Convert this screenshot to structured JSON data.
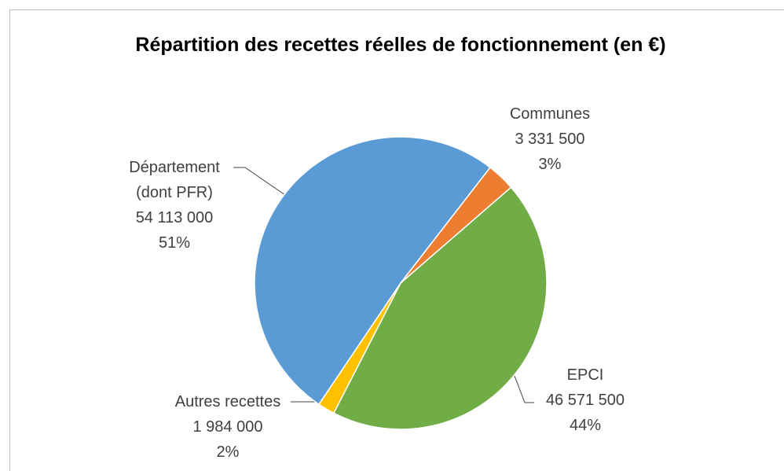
{
  "chart_data": {
    "type": "pie",
    "title": "Répartition des recettes réelles de fonctionnement (en €)",
    "categories": [
      "Département (dont PFR)",
      "Communes",
      "EPCI",
      "Autres recettes"
    ],
    "values": [
      54113000,
      3331500,
      46571500,
      1984000
    ],
    "value_labels": [
      "54 113 000",
      "3 331 500",
      "46 571 500",
      "1 984 000"
    ],
    "percentages": [
      {
        "value": 51,
        "label": "51%"
      },
      {
        "value": 3,
        "label": "3%"
      },
      {
        "value": 44,
        "label": "44%"
      },
      {
        "value": 2,
        "label": "2%"
      }
    ],
    "colors": [
      "#5b9bd5",
      "#ed7d31",
      "#70ad47",
      "#ffc000"
    ]
  }
}
